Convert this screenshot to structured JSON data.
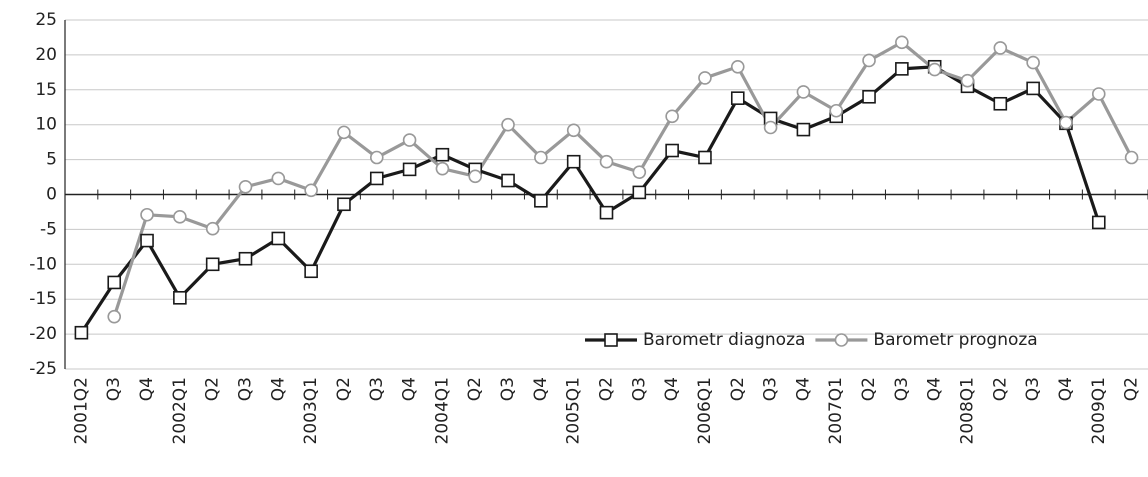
{
  "chart_data": {
    "type": "line",
    "categories": [
      "2001Q2",
      "Q3",
      "Q4",
      "2002Q1",
      "Q2",
      "Q3",
      "Q4",
      "2003Q1",
      "Q2",
      "Q3",
      "Q4",
      "2004Q1",
      "Q2",
      "Q3",
      "Q4",
      "2005Q1",
      "Q2",
      "Q3",
      "Q4",
      "2006Q1",
      "Q2",
      "Q3",
      "Q4",
      "2007Q1",
      "Q2",
      "Q3",
      "Q4",
      "2008Q1",
      "Q2",
      "Q3",
      "Q4",
      "2009Q1",
      "Q2"
    ],
    "series": [
      {
        "name": "Barometr diagnoza",
        "color": "#1a1a1a",
        "marker": "square",
        "values": [
          -19.8,
          -12.6,
          -6.6,
          -14.8,
          -10,
          -9.2,
          -6.3,
          -11,
          -1.4,
          2.3,
          3.6,
          5.7,
          3.6,
          2,
          -0.9,
          4.7,
          -2.6,
          0.3,
          6.3,
          5.3,
          13.8,
          10.9,
          9.3,
          11.2,
          14,
          18,
          18.3,
          15.5,
          13,
          15.2,
          10.2,
          -4,
          null
        ]
      },
      {
        "name": "Barometr prognoza",
        "color": "#999999",
        "marker": "circle",
        "values": [
          null,
          -17.5,
          -2.9,
          -3.2,
          -4.9,
          1.1,
          2.3,
          0.6,
          8.9,
          5.3,
          7.8,
          3.7,
          2.6,
          10,
          5.3,
          9.2,
          4.7,
          3.2,
          11.2,
          16.7,
          18.3,
          9.6,
          14.7,
          12,
          19.2,
          21.8,
          17.9,
          16.3,
          21,
          18.9,
          10.3,
          14.4,
          5.3
        ]
      }
    ],
    "ylim": [
      -25,
      25
    ],
    "yticks": [
      -25,
      -20,
      -15,
      -10,
      -5,
      0,
      5,
      10,
      15,
      20,
      25
    ],
    "grid": true,
    "legend": "lower right"
  }
}
